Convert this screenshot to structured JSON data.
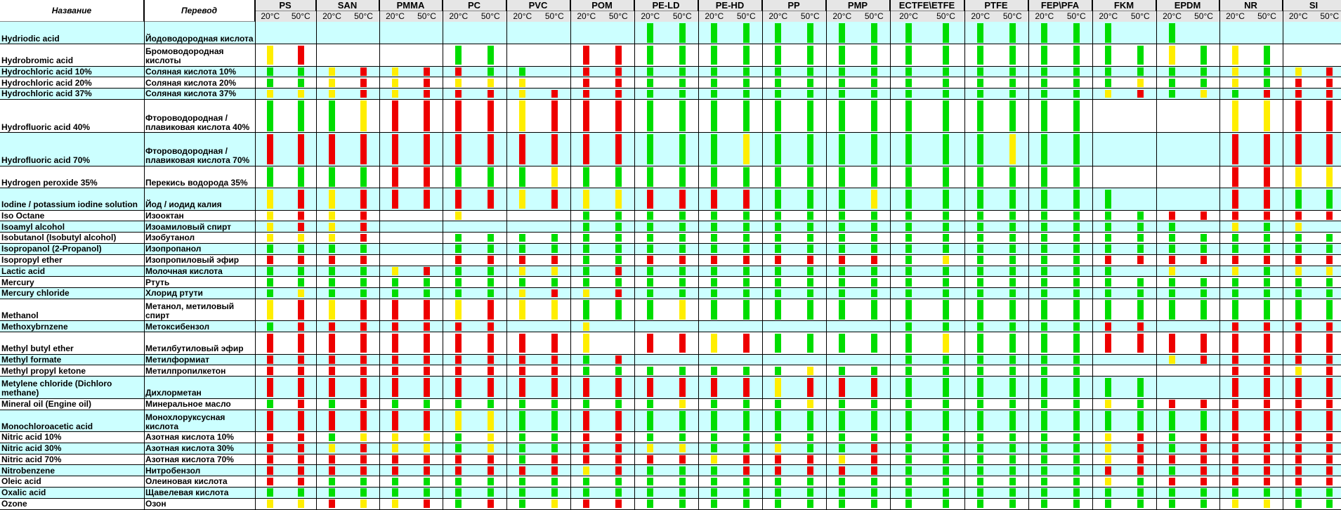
{
  "header": {
    "name_label": "Название",
    "translation_label": "Перевод",
    "temp_20": "20°C",
    "temp_50": "50°C",
    "materials": [
      "PS",
      "SAN",
      "PMMA",
      "PC",
      "PVC",
      "POM",
      "PE-LD",
      "PE-HD",
      "PP",
      "PMP",
      "ECTFE\\ETFE",
      "PTFE",
      "FEP\\PFA",
      "FKM",
      "EPDM",
      "NR",
      "SI"
    ]
  },
  "colors": {
    "green": "#00dd00",
    "yellow": "#ffee00",
    "red": "#ee0000",
    "row_cyan": "#ccffff",
    "row_white": "#ffffff"
  },
  "rows": [
    {
      "name": "Hydriodic acid",
      "translation": "Йодоводородная кислота",
      "ratings": [
        "--",
        "--",
        "--",
        "--",
        "--",
        "--",
        "gg",
        "gg",
        "gg",
        "gg",
        "gg",
        "gg",
        "gg",
        "g-",
        "g-",
        "--",
        "--"
      ]
    },
    {
      "name": "Hydrobromic acid",
      "translation": "Бромоводородная кислоты",
      "ratings": [
        "yr",
        "--",
        "--",
        "gg",
        "--",
        "rr",
        "gg",
        "gg",
        "gg",
        "gg",
        "gg",
        "gg",
        "gg",
        "gg",
        "yg",
        "yg",
        "--"
      ]
    },
    {
      "name": "Hydrochloric acid 10%",
      "translation": "Соляная кислота 10%",
      "ratings": [
        "gg",
        "yr",
        "yr",
        "rg",
        "g-",
        "rr",
        "gg",
        "gg",
        "gg",
        "gg",
        "gg",
        "gg",
        "gg",
        "gg",
        "gg",
        "yg",
        "yr"
      ]
    },
    {
      "name": "Hydrochloric acid 20%",
      "translation": "Соляная кислота 20%",
      "ratings": [
        "gg",
        "yr",
        "yr",
        "yy",
        "y-",
        "rr",
        "gg",
        "gg",
        "gg",
        "gg",
        "gg",
        "gg",
        "gg",
        "gy",
        "gg",
        "yg",
        "rr"
      ]
    },
    {
      "name": "Hydrochloric acid 37%",
      "translation": "Соляная кислота 37%",
      "ratings": [
        "yy",
        "yr",
        "yr",
        "rr",
        "yr",
        "rr",
        "gg",
        "gg",
        "gg",
        "gg",
        "gg",
        "gg",
        "gg",
        "yr",
        "gy",
        "gr",
        "rr"
      ]
    },
    {
      "name": "Hydrofluoric acid 40%",
      "translation": "Фтороводородная / плавиковая кислота 40%",
      "ratings": [
        "gg",
        "gy",
        "rr",
        "rr",
        "yr",
        "rr",
        "gg",
        "gg",
        "gg",
        "gg",
        "gg",
        "gg",
        "gg",
        "--",
        "--",
        "yy",
        "rr"
      ]
    },
    {
      "name": "Hydrofluoric acid 70%",
      "translation": "Фтороводородная / плавиковая кислота 70%",
      "ratings": [
        "rr",
        "rr",
        "rr",
        "rr",
        "rr",
        "rr",
        "gg",
        "gy",
        "gg",
        "gg",
        "gg",
        "gy",
        "gg",
        "--",
        "--",
        "rr",
        "rr"
      ]
    },
    {
      "name": "Hydrogen peroxide 35%",
      "translation": "Перекись водорода 35%",
      "ratings": [
        "gg",
        "gg",
        "rr",
        "gg",
        "gy",
        "gg",
        "gg",
        "gg",
        "gg",
        "gg",
        "gg",
        "gg",
        "gg",
        "--",
        "--",
        "rr",
        "yy"
      ]
    },
    {
      "name": "Iodine / potassium iodine solution",
      "translation": "Йод / иодид калия",
      "ratings": [
        "yr",
        "yr",
        "rr",
        "rr",
        "yr",
        "yy",
        "rr",
        "rr",
        "gg",
        "gy",
        "gg",
        "gg",
        "gg",
        "g-",
        "--",
        "rr",
        "gg"
      ]
    },
    {
      "name": "Iso Octane",
      "translation": "Изооктан",
      "ratings": [
        "yr",
        "yr",
        "--",
        "y-",
        "--",
        "gg",
        "gg",
        "gg",
        "gg",
        "gg",
        "gg",
        "gg",
        "gg",
        "gg",
        "rr",
        "rr",
        "rr"
      ]
    },
    {
      "name": "Isoamyl alcohol",
      "translation": "Изоамиловый спирт",
      "ratings": [
        "yr",
        "yr",
        "--",
        "--",
        "--",
        "gg",
        "gg",
        "gg",
        "gg",
        "gg",
        "gg",
        "gg",
        "gg",
        "gg",
        "g-",
        "yg",
        "y-"
      ]
    },
    {
      "name": "Isobutanol (Isobutyl alcohol)",
      "translation": "Изобутанол",
      "ratings": [
        "yy",
        "yr",
        "--",
        "gg",
        "gg",
        "gg",
        "gg",
        "gg",
        "gg",
        "gg",
        "gg",
        "gg",
        "gg",
        "gg",
        "gg",
        "gg",
        "gg"
      ]
    },
    {
      "name": "Isopropanol (2-Propanol)",
      "translation": "Изопропанол",
      "ratings": [
        "gg",
        "gg",
        "--",
        "gg",
        "gg",
        "gg",
        "gg",
        "gg",
        "gg",
        "gg",
        "gg",
        "gg",
        "gg",
        "gg",
        "gg",
        "gg",
        "gg"
      ]
    },
    {
      "name": "Isopropyl ether",
      "translation": "Изопропиловый эфир",
      "ratings": [
        "rr",
        "rr",
        "--",
        "rr",
        "rr",
        "gg",
        "rr",
        "rr",
        "rr",
        "rr",
        "gy",
        "gg",
        "gg",
        "rr",
        "rr",
        "rr",
        "rr"
      ]
    },
    {
      "name": "Lactic acid",
      "translation": "Молочная кислота",
      "ratings": [
        "gg",
        "gg",
        "yr",
        "gg",
        "yy",
        "gr",
        "gg",
        "gg",
        "gg",
        "gg",
        "gg",
        "gg",
        "gg",
        "g-",
        "y-",
        "yg",
        "yy"
      ]
    },
    {
      "name": "Mercury",
      "translation": "Ртуть",
      "ratings": [
        "gg",
        "gg",
        "gg",
        "gg",
        "gg",
        "gg",
        "gg",
        "gg",
        "gg",
        "gg",
        "gg",
        "gg",
        "gg",
        "gg",
        "gg",
        "gg",
        "gg"
      ]
    },
    {
      "name": "Mercury chloride",
      "translation": "Хлорид ртути",
      "ratings": [
        "gy",
        "gg",
        "gg",
        "gg",
        "yr",
        "yr",
        "gg",
        "gg",
        "gg",
        "gg",
        "gg",
        "gg",
        "gg",
        "gg",
        "gg",
        "gg",
        "gg"
      ]
    },
    {
      "name": "Methanol",
      "translation": "Метанол, метиловый спирт",
      "ratings": [
        "yr",
        "yr",
        "rr",
        "yr",
        "yy",
        "gg",
        "gy",
        "gg",
        "gg",
        "gg",
        "gg",
        "gg",
        "gg",
        "gg",
        "gg",
        "gg",
        "gg"
      ]
    },
    {
      "name": "Methoxybrnzene",
      "translation": "Метоксибензол",
      "ratings": [
        "gr",
        "rr",
        "rr",
        "rr",
        "--",
        "y-",
        "--",
        "--",
        "--",
        "--",
        "gg",
        "gg",
        "gg",
        "rr",
        "--",
        "rr",
        "rr"
      ]
    },
    {
      "name": "Methyl butyl ether",
      "translation": "Метилбутиловый эфир",
      "ratings": [
        "rr",
        "rr",
        "rr",
        "rr",
        "rr",
        "y-",
        "rr",
        "yr",
        "gg",
        "gg",
        "gy",
        "gg",
        "gg",
        "rr",
        "rr",
        "rr",
        "rr"
      ]
    },
    {
      "name": "Methyl formate",
      "translation": "Метилформиат",
      "ratings": [
        "rr",
        "rr",
        "rr",
        "rr",
        "rr",
        "gr",
        "--",
        "--",
        "--",
        "--",
        "gg",
        "gg",
        "gg",
        "--",
        "yr",
        "rr",
        "rr"
      ]
    },
    {
      "name": "Methyl propyl ketone",
      "translation": "Метилпропилкетон",
      "ratings": [
        "rr",
        "rr",
        "rr",
        "rr",
        "rr",
        "gg",
        "gg",
        "gg",
        "gy",
        "gg",
        "gg",
        "gg",
        "gg",
        "--",
        "--",
        "rr",
        "yr"
      ]
    },
    {
      "name": "Metylene chloride (Dichloro methane)",
      "translation": "Дихлорметан",
      "ratings": [
        "rr",
        "rr",
        "rr",
        "rr",
        "rr",
        "rr",
        "rr",
        "rr",
        "yr",
        "rr",
        "gg",
        "gg",
        "gg",
        "gg",
        "--",
        "rr",
        "rr"
      ]
    },
    {
      "name": "Mineral oil (Engine oil)",
      "translation": "Минеральное масло",
      "ratings": [
        "gr",
        "gr",
        "gg",
        "gg",
        "gg",
        "gg",
        "gy",
        "gg",
        "gy",
        "gg",
        "gg",
        "gg",
        "gg",
        "yg",
        "rr",
        "rr",
        "rr"
      ]
    },
    {
      "name": "Monochloroacetic acid",
      "translation": "Монохлоруксусная кислота",
      "ratings": [
        "rr",
        "rr",
        "rr",
        "yy",
        "gg",
        "rr",
        "gg",
        "gg",
        "gg",
        "gg",
        "gg",
        "gg",
        "gg",
        "gg",
        "gg",
        "rr",
        "rr"
      ]
    },
    {
      "name": "Nitric acid 10%",
      "translation": "Азотная кислота 10%",
      "ratings": [
        "rr",
        "gy",
        "yy",
        "gy",
        "gg",
        "rr",
        "gg",
        "gg",
        "gg",
        "gg",
        "gg",
        "gg",
        "gg",
        "yr",
        "gr",
        "rr",
        "rr"
      ]
    },
    {
      "name": "Nitric acid 30%",
      "translation": "Азотная кислота 30%",
      "ratings": [
        "rr",
        "yr",
        "yy",
        "gy",
        "gg",
        "rr",
        "yy",
        "gg",
        "yg",
        "gr",
        "gg",
        "gg",
        "gg",
        "yr",
        "gr",
        "rr",
        "rr"
      ]
    },
    {
      "name": "Nitric acid 70%",
      "translation": "Азотная кислота 70%",
      "ratings": [
        "rr",
        "rr",
        "rr",
        "rr",
        "gr",
        "rr",
        "rr",
        "yr",
        "rr",
        "yr",
        "gg",
        "gg",
        "gg",
        "yr",
        "rr",
        "rr",
        "rr"
      ]
    },
    {
      "name": "Nitrobenzene",
      "translation": "Нитробензол",
      "ratings": [
        "rr",
        "rr",
        "rr",
        "rr",
        "rr",
        "yr",
        "gg",
        "gr",
        "rr",
        "rr",
        "gg",
        "gg",
        "gg",
        "rr",
        "gr",
        "rr",
        "rr"
      ]
    },
    {
      "name": "Oleic acid",
      "translation": "Олеиновая кислота",
      "ratings": [
        "rr",
        "gg",
        "gg",
        "gg",
        "gg",
        "gg",
        "gg",
        "gg",
        "gg",
        "gg",
        "gg",
        "gg",
        "gg",
        "yg",
        "rr",
        "rr",
        "rr"
      ]
    },
    {
      "name": "Oxalic acid",
      "translation": "Щавелевая кислота",
      "ratings": [
        "gg",
        "gg",
        "gg",
        "gg",
        "gg",
        "gg",
        "gg",
        "gg",
        "gg",
        "gg",
        "gg",
        "gg",
        "gg",
        "gg",
        "gg",
        "gg",
        "gg"
      ]
    },
    {
      "name": "Ozone",
      "translation": "Озон",
      "ratings": [
        "yy",
        "ry",
        "yr",
        "gr",
        "gy",
        "rr",
        "gg",
        "gg",
        "gg",
        "gg",
        "gg",
        "gg",
        "gg",
        "gg",
        "gg",
        "yy",
        "gg"
      ]
    }
  ]
}
